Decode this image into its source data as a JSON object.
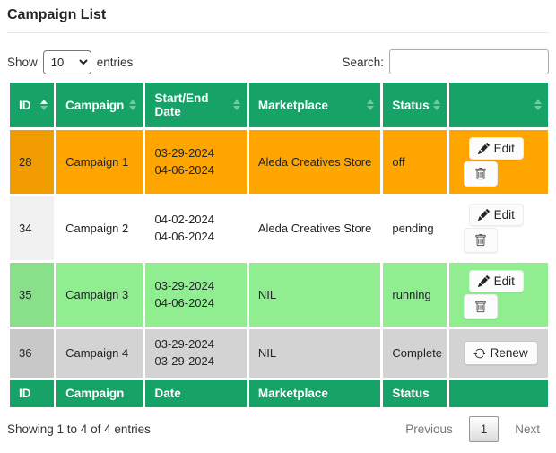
{
  "title": "Campaign List",
  "controls": {
    "show_label": "Show",
    "page_length": "10",
    "entries_label": "entries",
    "search_label": "Search:",
    "search_value": ""
  },
  "table": {
    "headers": [
      "ID",
      "Campaign",
      "Start/End Date",
      "Marketplace",
      "Status",
      ""
    ],
    "sorted_column": "ID",
    "sort_direction": "asc",
    "footer": [
      "ID",
      "Campaign",
      "Date",
      "Marketplace",
      "Status",
      ""
    ],
    "rows": [
      {
        "id": "28",
        "campaign": "Campaign 1",
        "dates": [
          "03-29-2024",
          "04-06-2024"
        ],
        "marketplace": "Aleda Creatives Store",
        "status": "off",
        "color": "#ffa500",
        "actions": [
          "edit",
          "delete"
        ]
      },
      {
        "id": "34",
        "campaign": "Campaign 2",
        "dates": [
          "04-02-2024",
          "04-06-2024"
        ],
        "marketplace": "Aleda Creatives Store",
        "status": "pending",
        "color": "#ffffff",
        "actions": [
          "edit",
          "delete"
        ]
      },
      {
        "id": "35",
        "campaign": "Campaign 3",
        "dates": [
          "03-29-2024",
          "04-06-2024"
        ],
        "marketplace": "NIL",
        "status": "running",
        "color": "#90ee90",
        "actions": [
          "edit",
          "delete"
        ]
      },
      {
        "id": "36",
        "campaign": "Campaign 4",
        "dates": [
          "03-29-2024",
          "03-29-2024"
        ],
        "marketplace": "NIL",
        "status": "Complete",
        "color": "#d3d3d3",
        "actions": [
          "renew"
        ]
      }
    ]
  },
  "action_labels": {
    "edit": "Edit",
    "renew": "Renew"
  },
  "action_icons": {
    "edit": "pencil-icon",
    "delete": "trash-icon",
    "renew": "refresh-icon"
  },
  "info": "Showing 1 to 4 of 4 entries",
  "pagination": {
    "previous_label": "Previous",
    "page": "1",
    "next_label": "Next"
  },
  "colors": {
    "header_green": "#17a268",
    "row_off_orange": "#ffa500",
    "row_running_green": "#90ee90",
    "row_complete_gray": "#d3d3d3",
    "header_text": "#ffffff"
  }
}
